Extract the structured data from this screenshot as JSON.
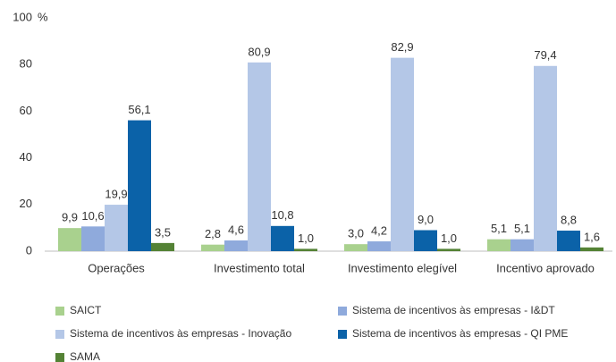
{
  "chart_data": {
    "type": "bar",
    "y_unit": "%",
    "categories": [
      "Operações",
      "Investimento total",
      "Investimento elegível",
      "Incentivo aprovado"
    ],
    "series": [
      {
        "name": "SAICT",
        "color": "#a9d18e",
        "values": [
          9.9,
          2.8,
          3.0,
          5.1
        ],
        "value_labels": [
          "9,9",
          "2,8",
          "3,0",
          "5,1"
        ]
      },
      {
        "name": "Sistema de incentivos às empresas - I&DT",
        "color": "#8faadc",
        "values": [
          10.6,
          4.6,
          4.2,
          5.1
        ],
        "value_labels": [
          "10,6",
          "4,6",
          "4,2",
          "5,1"
        ]
      },
      {
        "name": "Sistema de incentivos às empresas - Inovação",
        "color": "#b4c7e7",
        "values": [
          19.9,
          80.9,
          82.9,
          79.4
        ],
        "value_labels": [
          "19,9",
          "80,9",
          "82,9",
          "79,4"
        ]
      },
      {
        "name": "Sistema de incentivos às empresas - QI PME",
        "color": "#0b62a8",
        "values": [
          56.1,
          10.8,
          9.0,
          8.8
        ],
        "value_labels": [
          "56,1",
          "10,8",
          "9,0",
          "8,8"
        ]
      },
      {
        "name": "SAMA",
        "color": "#548235",
        "values": [
          3.5,
          1.0,
          1.0,
          1.6
        ],
        "value_labels": [
          "3,5",
          "1,0",
          "1,0",
          "1,6"
        ]
      }
    ],
    "ylim": [
      0,
      100
    ],
    "yticks": [
      0,
      20,
      40,
      60,
      80,
      100
    ],
    "grid": false
  }
}
